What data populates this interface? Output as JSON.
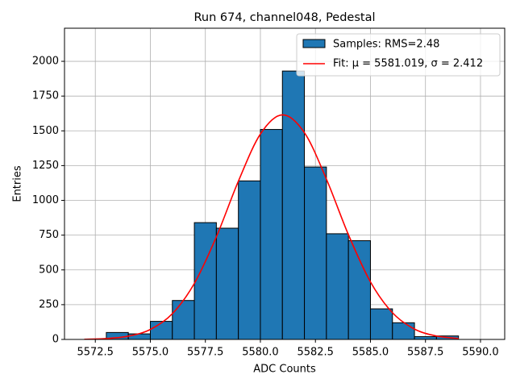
{
  "chart_data": {
    "type": "histogram",
    "title": "Run 674, channel048, Pedestal",
    "xlabel": "ADC Counts",
    "ylabel": "Entries",
    "bins": [
      5572,
      5573,
      5574,
      5575,
      5576,
      5577,
      5578,
      5579,
      5580,
      5581,
      5582,
      5583,
      5584,
      5585,
      5586,
      5587,
      5588,
      5589
    ],
    "counts": [
      0,
      50,
      40,
      130,
      280,
      840,
      800,
      1140,
      1510,
      1930,
      1240,
      760,
      710,
      220,
      120,
      20,
      25
    ],
    "name": "Samples: RMS=2.48",
    "color": "#1f77b4",
    "edgecolor": "#000000",
    "fit": {
      "name": "Fit: μ = 5581.019, σ = 2.412",
      "color": "#ff0000",
      "x": [
        5572,
        5573,
        5574,
        5575,
        5576,
        5577,
        5578,
        5579,
        5580,
        5581,
        5582,
        5583,
        5584,
        5585,
        5586,
        5587,
        5588,
        5589
      ],
      "values": [
        1.5,
        6.4,
        23.4,
        71.8,
        185,
        403,
        738,
        1138,
        1477,
        1615,
        1487,
        1153,
        753,
        414,
        192,
        74.7,
        24.5,
        6.8
      ]
    },
    "xlim": [
      5571.1,
      5591.1
    ],
    "ylim": [
      0,
      2238
    ],
    "xticks": [
      {
        "value": 5572.5,
        "label": "5572.5"
      },
      {
        "value": 5575,
        "label": "5575.0"
      },
      {
        "value": 5577.5,
        "label": "5577.5"
      },
      {
        "value": 5580,
        "label": "5580.0"
      },
      {
        "value": 5582.5,
        "label": "5582.5"
      },
      {
        "value": 5585,
        "label": "5585.0"
      },
      {
        "value": 5587.5,
        "label": "5587.5"
      },
      {
        "value": 5590,
        "label": "5590.0"
      }
    ],
    "yticks": [
      0,
      250,
      500,
      750,
      1000,
      1250,
      1500,
      1750,
      2000
    ],
    "grid": true,
    "legend": "upper right"
  }
}
